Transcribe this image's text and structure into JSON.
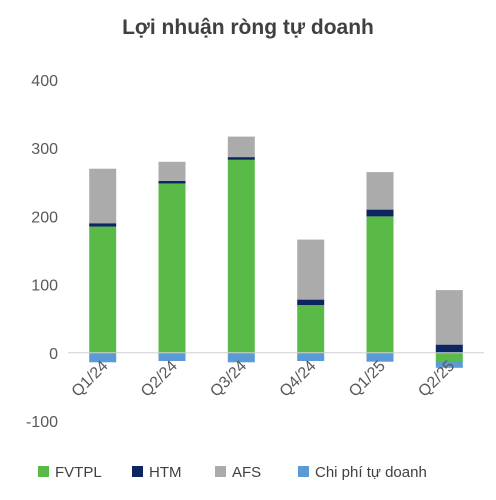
{
  "chart_data": {
    "type": "bar",
    "stacked": true,
    "title": "Lợi nhuận ròng tự doanh",
    "xlabel": "",
    "ylabel": "",
    "categories": [
      "Q1/24",
      "Q2/24",
      "Q3/24",
      "Q4/24",
      "Q1/25",
      "Q2/25"
    ],
    "ylim": [
      -100,
      400
    ],
    "yticks": [
      -100,
      0,
      100,
      200,
      300,
      400
    ],
    "grid": false,
    "legend_position": "bottom",
    "series": [
      {
        "name": "FVTPL",
        "color": "#5ABA47",
        "values": [
          185,
          248,
          283,
          70,
          200,
          -12
        ]
      },
      {
        "name": "HTM",
        "color": "#0D2560",
        "values": [
          5,
          4,
          4,
          8,
          10,
          12
        ]
      },
      {
        "name": "AFS",
        "color": "#ABABAB",
        "values": [
          80,
          28,
          30,
          88,
          55,
          80
        ]
      },
      {
        "name": "Chi phí tự doanh",
        "color": "#5B9BD5",
        "values": [
          -14,
          -12,
          -14,
          -12,
          -13,
          -10
        ]
      }
    ]
  }
}
